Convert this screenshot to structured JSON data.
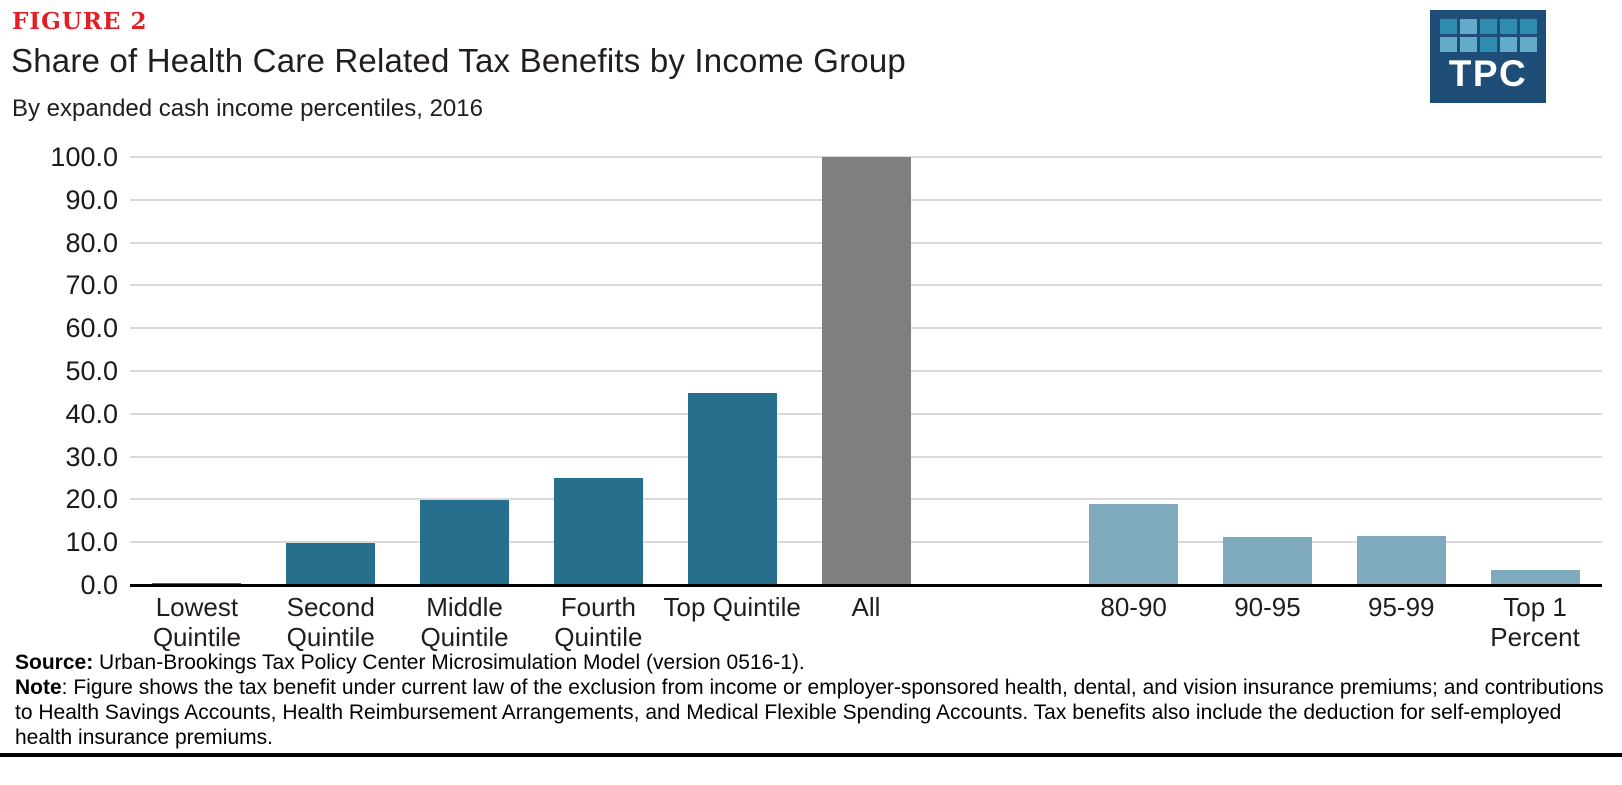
{
  "figure": {
    "label": "FIGURE 2",
    "title": "Share of Health Care Related Tax Benefits by Income Group",
    "subtitle": "By expanded cash income percentiles, 2016"
  },
  "logo": {
    "text": "TPC",
    "bg_color": "#1e4d77",
    "square_colors": {
      "m": "#2e8cb0",
      "l": "#63abc9"
    },
    "grid": [
      [
        "m",
        "l",
        "m",
        "m",
        "m"
      ],
      [
        "l",
        "l",
        "m",
        "l",
        "l"
      ]
    ]
  },
  "chart_data": {
    "type": "bar",
    "title": "Share of Health Care Related Tax Benefits by Income Group",
    "subtitle": "By expanded cash income percentiles, 2016",
    "xlabel": "",
    "ylabel": "",
    "ylim": [
      0,
      100
    ],
    "ytick_labels": [
      "0.0",
      "10.0",
      "20.0",
      "30.0",
      "40.0",
      "50.0",
      "60.0",
      "70.0",
      "80.0",
      "90.0",
      "100.0"
    ],
    "grid": "horizontal",
    "gridline_color": "#d9d9d9",
    "legend": "none",
    "bars": [
      {
        "label": "Lowest Quintile",
        "label_lines": [
          "Lowest",
          "Quintile"
        ],
        "value": 0.5,
        "color": "#26708e"
      },
      {
        "label": "Second Quintile",
        "label_lines": [
          "Second",
          "Quintile"
        ],
        "value": 9.8,
        "color": "#26708e"
      },
      {
        "label": "Middle Quintile",
        "label_lines": [
          "Middle",
          "Quintile"
        ],
        "value": 19.8,
        "color": "#26708e"
      },
      {
        "label": "Fourth Quintile",
        "label_lines": [
          "Fourth",
          "Quintile"
        ],
        "value": 25.1,
        "color": "#26708e"
      },
      {
        "label": "Top Quintile",
        "label_lines": [
          "Top Quintile"
        ],
        "value": 44.9,
        "color": "#26708e"
      },
      {
        "label": "All",
        "label_lines": [
          "All"
        ],
        "value": 100.0,
        "color": "#7f7f7f"
      },
      {
        "label": "",
        "label_lines": [],
        "value": null,
        "color": null
      },
      {
        "label": "80-90",
        "label_lines": [
          "80-90"
        ],
        "value": 18.9,
        "color": "#7fa9bc"
      },
      {
        "label": "90-95",
        "label_lines": [
          "90-95"
        ],
        "value": 11.1,
        "color": "#7fa9bc"
      },
      {
        "label": "95-99",
        "label_lines": [
          "95-99"
        ],
        "value": 11.4,
        "color": "#7fa9bc"
      },
      {
        "label": "Top 1 Percent",
        "label_lines": [
          "Top 1",
          "Percent"
        ],
        "value": 3.6,
        "color": "#7fa9bc"
      }
    ]
  },
  "footer": {
    "source_label": "Source:",
    "source_text": " Urban-Brookings Tax Policy Center Microsimulation Model (version 0516-1).",
    "note_label": "Note",
    "note_text": ":  Figure shows the tax benefit under current law of the exclusion from income or employer-sponsored health, dental, and vision insurance premiums; and contributions to Health Savings Accounts, Health Reimbursement Arrangements, and Medical Flexible Spending Accounts. Tax benefits also include the deduction for self-employed health insurance premiums."
  }
}
